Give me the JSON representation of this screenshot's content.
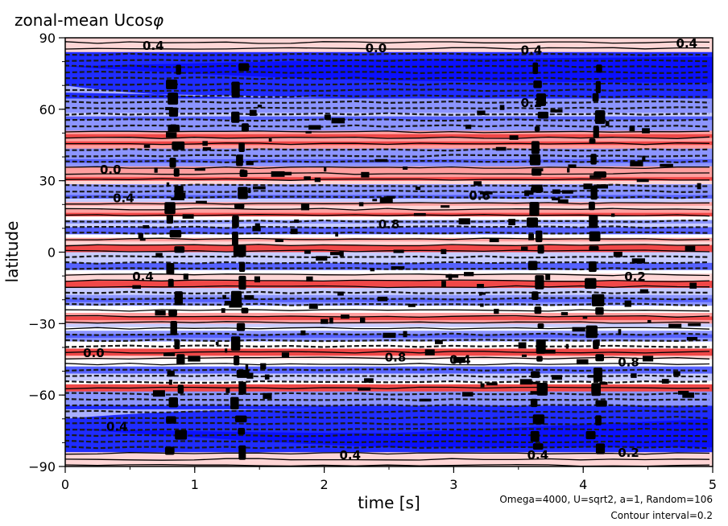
{
  "chart_data": {
    "type": "heatmap",
    "title": "zonal-mean Ucos",
    "title_symbol": "φ",
    "xlabel": "time [s]",
    "ylabel": "latitude",
    "xlim": [
      0,
      5
    ],
    "ylim": [
      -90,
      90
    ],
    "x_ticks": [
      0,
      1,
      2,
      3,
      4,
      5
    ],
    "y_ticks": [
      90,
      60,
      30,
      0,
      -30,
      -60,
      -90
    ],
    "y_tick_labels": [
      "90",
      "60",
      "30",
      "0",
      "−30",
      "−60",
      "−90"
    ],
    "contour_interval": 0.2,
    "notes": [
      "Omega=4000, U=sqrt2, a=1, Random=106",
      "Contour interval=0.2"
    ],
    "contour_labels": [
      {
        "text": "0.4",
        "x": 0.68,
        "y": 85
      },
      {
        "text": "0.0",
        "x": 2.4,
        "y": 84
      },
      {
        "text": "0.4",
        "x": 3.6,
        "y": 83
      },
      {
        "text": "0.4",
        "x": 4.8,
        "y": 86
      },
      {
        "text": "0.2",
        "x": 3.6,
        "y": 61
      },
      {
        "text": "0.0",
        "x": 0.35,
        "y": 33
      },
      {
        "text": "0.4",
        "x": 0.45,
        "y": 21
      },
      {
        "text": "0.6",
        "x": 3.2,
        "y": 22
      },
      {
        "text": "0.8",
        "x": 2.5,
        "y": 10
      },
      {
        "text": "0.4",
        "x": 0.6,
        "y": -12
      },
      {
        "text": "0.2",
        "x": 4.4,
        "y": -12
      },
      {
        "text": "0.0",
        "x": 0.22,
        "y": -44
      },
      {
        "text": "0.8",
        "x": 2.55,
        "y": -46
      },
      {
        "text": "0.4",
        "x": 3.05,
        "y": -47
      },
      {
        "text": "0.8",
        "x": 4.35,
        "y": -48
      },
      {
        "text": "0.4",
        "x": 0.4,
        "y": -75
      },
      {
        "text": "0.4",
        "x": 2.2,
        "y": -87
      },
      {
        "text": "0.4",
        "x": 3.65,
        "y": -87
      },
      {
        "text": "0.2",
        "x": 4.35,
        "y": -86
      }
    ]
  }
}
